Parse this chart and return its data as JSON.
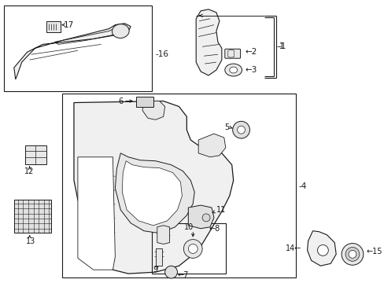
{
  "bg_color": "#ffffff",
  "line_color": "#1a1a1a",
  "fig_width": 4.89,
  "fig_height": 3.6
}
